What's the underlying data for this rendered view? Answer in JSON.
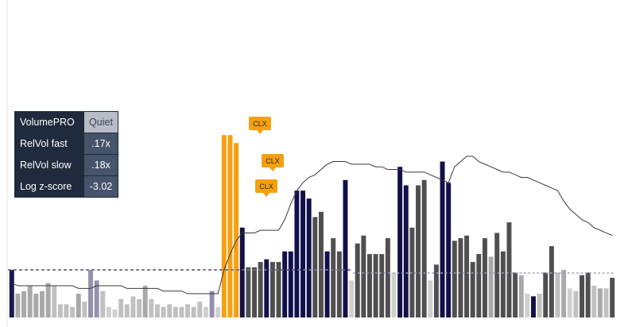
{
  "chart_data": {
    "type": "bar",
    "title": "",
    "xlabel": "",
    "ylabel": "",
    "ylim": [
      0,
      100
    ],
    "values": [
      18,
      9,
      10,
      12,
      9,
      10,
      13,
      12,
      5,
      5,
      4,
      9,
      6,
      18,
      14,
      10,
      4,
      3,
      7,
      5,
      8,
      7,
      12,
      7,
      5,
      4,
      5,
      4,
      4,
      5,
      4,
      6,
      4,
      10,
      4,
      69,
      69,
      66,
      34,
      19,
      19,
      21,
      22,
      21,
      21,
      25,
      25,
      48,
      48,
      45,
      38,
      40,
      25,
      30,
      25,
      52,
      14,
      28,
      31,
      24,
      24,
      24,
      30,
      17,
      57,
      50,
      34,
      50,
      52,
      14,
      20,
      59,
      51,
      29,
      30,
      31,
      21,
      24,
      30,
      23,
      32,
      25,
      36,
      17,
      16,
      9,
      8,
      9,
      17,
      27,
      17,
      18,
      11,
      10,
      16,
      17,
      12,
      11,
      11,
      15
    ],
    "colors": [
      "#1a1a4e",
      "#a9a9a9",
      "#a9a9a9",
      "#a9a9a9",
      "#a9a9a9",
      "#a9a9a9",
      "#a9a9a9",
      "#c0c0c0",
      "#c0c0c0",
      "#c0c0c0",
      "#c0c0c0",
      "#a9a9a9",
      "#c0c0c0",
      "#9590ab",
      "#9590ab",
      "#c0c0c0",
      "#d0d0d0",
      "#d0d0d0",
      "#c0c0c0",
      "#c0c0c0",
      "#c0c0c0",
      "#c0c0c0",
      "#a9a9a9",
      "#c0c0c0",
      "#c0c0c0",
      "#c0c0c0",
      "#c0c0c0",
      "#c0c0c0",
      "#c0c0c0",
      "#c0c0c0",
      "#c0c0c0",
      "#c0c0c0",
      "#d0d0d0",
      "#9590ab",
      "#d0d0d0",
      "#f5a010",
      "#f5a010",
      "#f5a010",
      "#12104a",
      "#4f4f4f",
      "#4f4f4f",
      "#4f4f4f",
      "#12104a",
      "#4f4f4f",
      "#4f4f4f",
      "#12104a",
      "#12104a",
      "#12104a",
      "#12104a",
      "#12104a",
      "#4f4f4f",
      "#4f4f4f",
      "#12104a",
      "#4f4f4f",
      "#4f4f4f",
      "#12104a",
      "#d0d0d0",
      "#4f4f4f",
      "#4f4f4f",
      "#4f4f4f",
      "#4f4f4f",
      "#4f4f4f",
      "#4f4f4f",
      "#d0d0d0",
      "#12104a",
      "#12104a",
      "#4f4f4f",
      "#4f4f4f",
      "#4f4f4f",
      "#d0d0d0",
      "#4f4f4f",
      "#12104a",
      "#12104a",
      "#4f4f4f",
      "#4f4f4f",
      "#4f4f4f",
      "#4f4f4f",
      "#4f4f4f",
      "#4f4f4f",
      "#a9a9a9",
      "#4f4f4f",
      "#4f4f4f",
      "#4f4f4f",
      "#4f4f4f",
      "#a9a9a9",
      "#d0d0d0",
      "#12104a",
      "#c0c0c0",
      "#4f4f4f",
      "#4f4f4f",
      "#c0c0c0",
      "#a9a9a9",
      "#d0d0d0",
      "#c0c0c0",
      "#4f4f4f",
      "#4f4f4f",
      "#c0c0c0",
      "#a9a9a9",
      "#c0c0c0",
      "#4f4f4f"
    ],
    "line": [
      13,
      12,
      12,
      12,
      12,
      12,
      12,
      12,
      12,
      12,
      12,
      11,
      11,
      11,
      12,
      12,
      12,
      12,
      12,
      11,
      11,
      11,
      11,
      11,
      11,
      10,
      10,
      10,
      10,
      9,
      9,
      9,
      9,
      9,
      9,
      18,
      24,
      29,
      32,
      32,
      32,
      33,
      33,
      33,
      33,
      37,
      43,
      48,
      51,
      53,
      54,
      56,
      58,
      59,
      59,
      59,
      58,
      58,
      58,
      58,
      57,
      57,
      56,
      56,
      56,
      55,
      55,
      55,
      55,
      54,
      53,
      52,
      51,
      57,
      59,
      61,
      61,
      59,
      58,
      57,
      56,
      55,
      55,
      54,
      53,
      53,
      52,
      51,
      50,
      49,
      48,
      44,
      41,
      39,
      37,
      36,
      34,
      33,
      32,
      31
    ],
    "reference_level": 10,
    "reference_level2": 22,
    "markers": [
      {
        "label": "CLX",
        "bar_index": 35
      },
      {
        "label": "CLX",
        "bar_index": 36
      },
      {
        "label": "CLX",
        "bar_index": 37
      }
    ]
  },
  "info_panel": {
    "rows": [
      {
        "label": "VolumePRO",
        "value": "Quiet"
      },
      {
        "label": "RelVol fast",
        "value": ".17x"
      },
      {
        "label": "RelVol slow",
        "value": ".18x"
      },
      {
        "label": "Log z-score",
        "value": "-3.02"
      }
    ],
    "value_color_quiet": "#b7bcc6",
    "panel_color": "#1f2a3c",
    "value_color": "#45546a"
  }
}
